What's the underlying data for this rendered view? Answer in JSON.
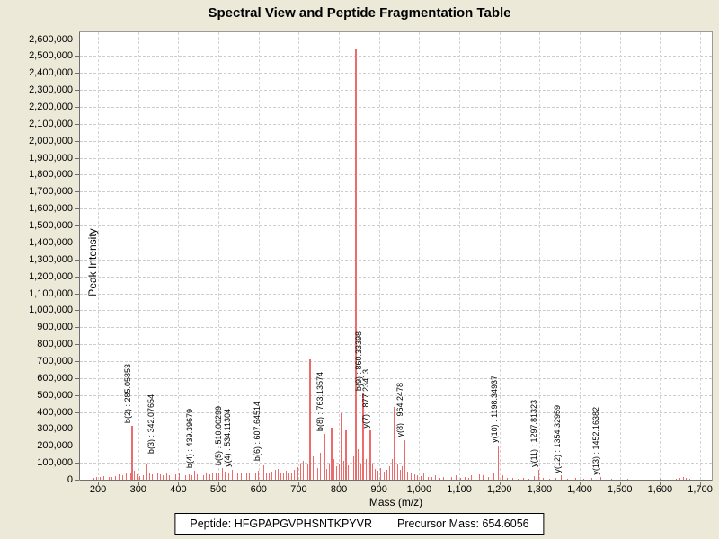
{
  "title": "Spectral View and Peptide Fragmentation Table",
  "footer": {
    "peptide_text": "Peptide: HFGPAPGVPHSNTKPYVR",
    "precursor_text": "Precursor Mass: 654.6056"
  },
  "colors": {
    "window_background": "#ece9d8",
    "plot_background": "#ffffff",
    "grid": "#cccccc",
    "peak": "#ee6b6b",
    "axis": "#6f6f6f",
    "text": "#000000"
  },
  "chart_data": {
    "type": "bar",
    "title": "Spectral View and Peptide Fragmentation Table",
    "xlabel": "Mass (m/z)",
    "ylabel": "Peak Intensity",
    "xlim": [
      155,
      1729
    ],
    "ylim": [
      0,
      2640000
    ],
    "x_ticks": {
      "min": 200,
      "max": 1700,
      "step": 100
    },
    "y_ticks": {
      "min": 0,
      "max": 2600000,
      "step": 100000
    },
    "grid": true,
    "legend": "none",
    "peaks": [
      [
        190,
        12000
      ],
      [
        196,
        18000
      ],
      [
        205,
        15000
      ],
      [
        215,
        22000
      ],
      [
        228,
        18000
      ],
      [
        235,
        15000
      ],
      [
        243,
        20000
      ],
      [
        253,
        30000
      ],
      [
        262,
        25000
      ],
      [
        270,
        38000
      ],
      [
        278,
        90000
      ],
      [
        282,
        45000
      ],
      [
        285.06,
        320000
      ],
      [
        291,
        55000
      ],
      [
        298,
        30000
      ],
      [
        305,
        20000
      ],
      [
        312,
        28000
      ],
      [
        321,
        90000
      ],
      [
        328,
        35000
      ],
      [
        335,
        30000
      ],
      [
        342.08,
        140000
      ],
      [
        349,
        40000
      ],
      [
        356,
        30000
      ],
      [
        363,
        25000
      ],
      [
        371,
        35000
      ],
      [
        378,
        28000
      ],
      [
        386,
        22000
      ],
      [
        394,
        30000
      ],
      [
        402,
        40000
      ],
      [
        410,
        35000
      ],
      [
        418,
        28000
      ],
      [
        426,
        32000
      ],
      [
        433,
        28000
      ],
      [
        439.4,
        55000
      ],
      [
        447,
        30000
      ],
      [
        455,
        25000
      ],
      [
        463,
        28000
      ],
      [
        470,
        35000
      ],
      [
        478,
        30000
      ],
      [
        486,
        40000
      ],
      [
        494,
        45000
      ],
      [
        502,
        38000
      ],
      [
        510,
        70000
      ],
      [
        517,
        50000
      ],
      [
        525,
        45000
      ],
      [
        534.11,
        60000
      ],
      [
        541,
        40000
      ],
      [
        548,
        35000
      ],
      [
        556,
        45000
      ],
      [
        563,
        30000
      ],
      [
        570,
        35000
      ],
      [
        578,
        40000
      ],
      [
        585,
        30000
      ],
      [
        592,
        45000
      ],
      [
        599,
        55000
      ],
      [
        607.65,
        95000
      ],
      [
        613,
        85000
      ],
      [
        620,
        45000
      ],
      [
        627,
        38000
      ],
      [
        634,
        50000
      ],
      [
        641,
        60000
      ],
      [
        648,
        65000
      ],
      [
        655,
        45000
      ],
      [
        662,
        40000
      ],
      [
        669,
        55000
      ],
      [
        676,
        35000
      ],
      [
        683,
        45000
      ],
      [
        690,
        60000
      ],
      [
        697,
        75000
      ],
      [
        704,
        90000
      ],
      [
        711,
        110000
      ],
      [
        717,
        125000
      ],
      [
        723,
        90000
      ],
      [
        729,
        710000
      ],
      [
        735,
        140000
      ],
      [
        741,
        80000
      ],
      [
        748,
        70000
      ],
      [
        755,
        160000
      ],
      [
        763.14,
        270000
      ],
      [
        770,
        65000
      ],
      [
        776,
        90000
      ],
      [
        782,
        310000
      ],
      [
        788,
        120000
      ],
      [
        794,
        80000
      ],
      [
        800,
        95000
      ],
      [
        806,
        390000
      ],
      [
        812,
        110000
      ],
      [
        818,
        290000
      ],
      [
        824,
        85000
      ],
      [
        830,
        70000
      ],
      [
        836,
        140000
      ],
      [
        842,
        2540000
      ],
      [
        849,
        180000
      ],
      [
        855,
        90000
      ],
      [
        860.33,
        510000
      ],
      [
        868,
        120000
      ],
      [
        877.23,
        290000
      ],
      [
        884,
        90000
      ],
      [
        891,
        65000
      ],
      [
        898,
        55000
      ],
      [
        905,
        70000
      ],
      [
        912,
        50000
      ],
      [
        919,
        60000
      ],
      [
        926,
        80000
      ],
      [
        932,
        120000
      ],
      [
        939,
        430000
      ],
      [
        946,
        90000
      ],
      [
        953,
        60000
      ],
      [
        958,
        80000
      ],
      [
        964.25,
        235000
      ],
      [
        972,
        50000
      ],
      [
        980,
        40000
      ],
      [
        988,
        30000
      ],
      [
        996,
        28000
      ],
      [
        1004,
        22000
      ],
      [
        1012,
        35000
      ],
      [
        1022,
        18000
      ],
      [
        1032,
        15000
      ],
      [
        1040,
        25000
      ],
      [
        1052,
        12000
      ],
      [
        1061,
        15000
      ],
      [
        1072,
        10000
      ],
      [
        1081,
        18000
      ],
      [
        1093,
        25000
      ],
      [
        1104,
        12000
      ],
      [
        1115,
        15000
      ],
      [
        1124,
        10000
      ],
      [
        1131,
        25000
      ],
      [
        1140,
        18000
      ],
      [
        1150,
        30000
      ],
      [
        1160,
        25000
      ],
      [
        1172,
        15000
      ],
      [
        1186,
        35000
      ],
      [
        1198.35,
        200000
      ],
      [
        1208,
        25000
      ],
      [
        1220,
        12000
      ],
      [
        1232,
        10000
      ],
      [
        1246,
        8000
      ],
      [
        1260,
        10000
      ],
      [
        1274,
        8000
      ],
      [
        1286,
        20000
      ],
      [
        1297.81,
        60000
      ],
      [
        1310,
        10000
      ],
      [
        1325,
        8000
      ],
      [
        1340,
        10000
      ],
      [
        1354.33,
        25000
      ],
      [
        1370,
        8000
      ],
      [
        1390,
        10000
      ],
      [
        1410,
        8000
      ],
      [
        1430,
        10000
      ],
      [
        1452.16,
        15000
      ],
      [
        1480,
        6000
      ],
      [
        1520,
        5000
      ],
      [
        1560,
        6000
      ],
      [
        1600,
        5000
      ],
      [
        1640,
        8000
      ],
      [
        1650,
        12000
      ],
      [
        1658,
        15000
      ],
      [
        1666,
        10000
      ],
      [
        1675,
        8000
      ]
    ],
    "annotations": [
      {
        "ion": "b(2)",
        "mass": "285.05853",
        "mz": 285.06,
        "intensity": 320000
      },
      {
        "ion": "b(3)",
        "mass": "342.07654",
        "mz": 342.08,
        "intensity": 140000
      },
      {
        "ion": "b(4)",
        "mass": "439.39679",
        "mz": 439.4,
        "intensity": 55000
      },
      {
        "ion": "b(5)",
        "mass": "510.00299",
        "mz": 510.0,
        "intensity": 70000
      },
      {
        "ion": "y(4)",
        "mass": "534.11304",
        "mz": 534.11,
        "intensity": 60000
      },
      {
        "ion": "b(6)",
        "mass": "607.64514",
        "mz": 607.65,
        "intensity": 95000
      },
      {
        "ion": "b(8)",
        "mass": "763.13574",
        "mz": 763.14,
        "intensity": 270000
      },
      {
        "ion": "b(9)",
        "mass": "860.33398",
        "mz": 860.33,
        "intensity": 510000
      },
      {
        "ion": "y(7)",
        "mass": "877.23413",
        "mz": 877.23,
        "intensity": 290000
      },
      {
        "ion": "y(8)",
        "mass": "964.2478",
        "mz": 964.25,
        "intensity": 235000
      },
      {
        "ion": "y(10)",
        "mass": "1198.34937",
        "mz": 1198.35,
        "intensity": 200000
      },
      {
        "ion": "y(11)",
        "mass": "1297.81323",
        "mz": 1297.81,
        "intensity": 60000
      },
      {
        "ion": "y(12)",
        "mass": "1354.32959",
        "mz": 1354.33,
        "intensity": 25000
      },
      {
        "ion": "y(13)",
        "mass": "1452.16382",
        "mz": 1452.16,
        "intensity": 15000
      }
    ]
  }
}
